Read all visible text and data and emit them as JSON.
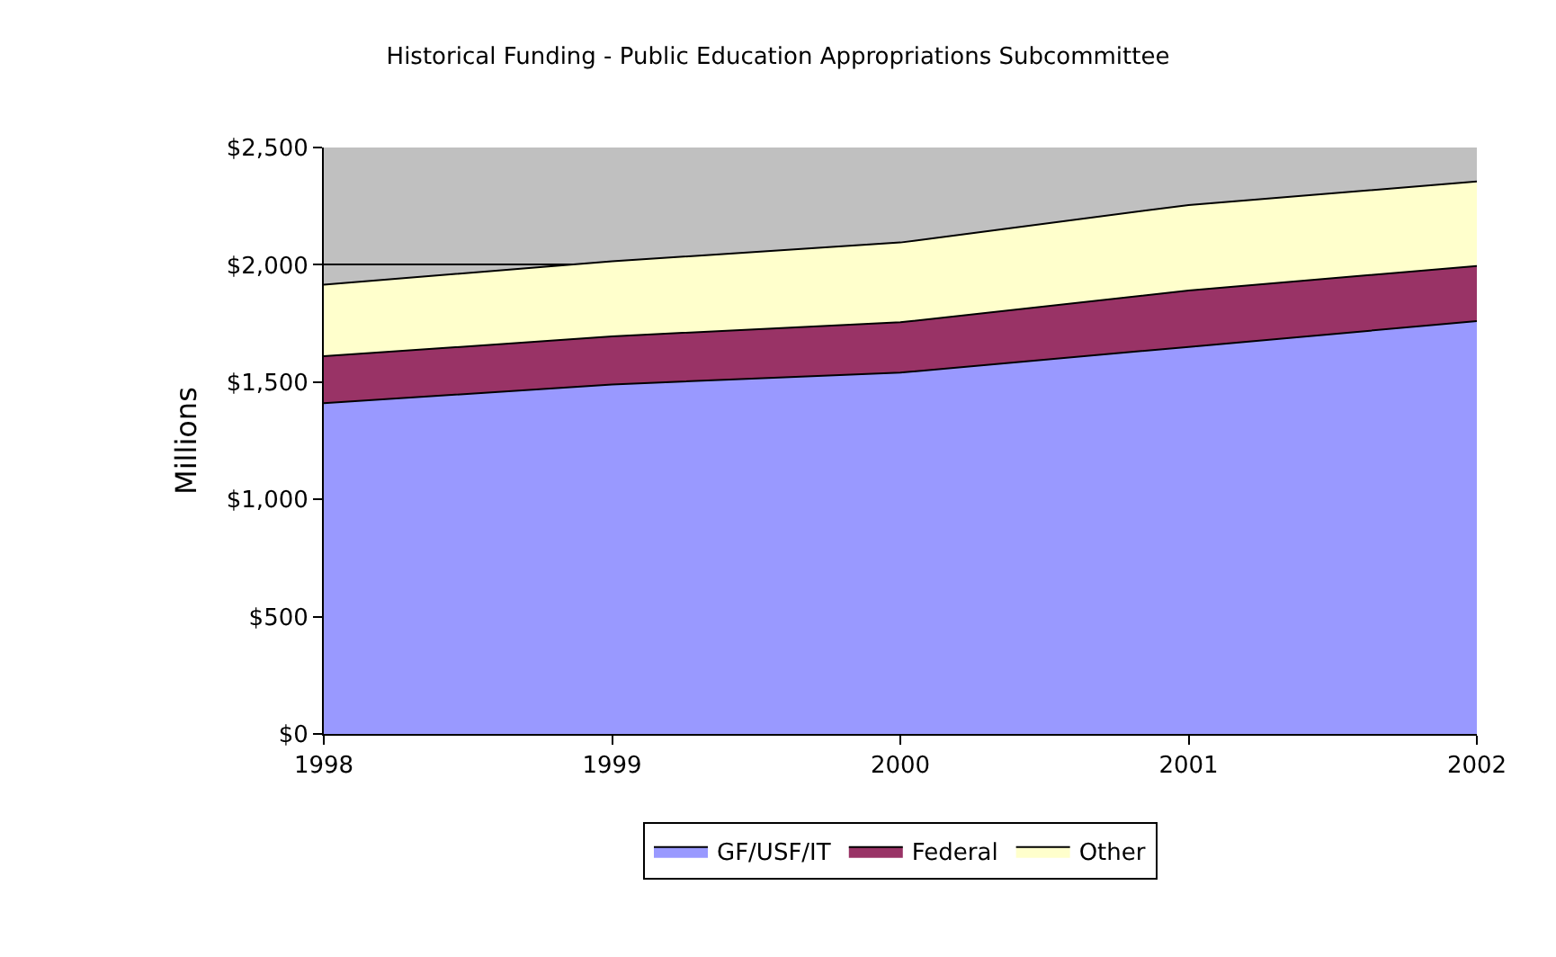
{
  "chart_data": {
    "type": "area",
    "stacked": true,
    "title": "Historical Funding - Public Education Appropriations Subcommittee",
    "ylabel": "Millions",
    "x": [
      1998,
      1999,
      2000,
      2001,
      2002
    ],
    "xlim": [
      1998,
      2002
    ],
    "xticks": [
      1998,
      1999,
      2000,
      2001,
      2002
    ],
    "ylim": [
      0,
      2500
    ],
    "yticks": [
      {
        "value": 0,
        "label": "$0"
      },
      {
        "value": 500,
        "label": "$500"
      },
      {
        "value": 1000,
        "label": "$1,000"
      },
      {
        "value": 1500,
        "label": "$1,500"
      },
      {
        "value": 2000,
        "label": "$2,000"
      },
      {
        "value": 2500,
        "label": "$2,500"
      }
    ],
    "grid": "y",
    "legend": "bottom",
    "series": [
      {
        "name": "GF/USF/IT",
        "color": "#9999ff",
        "values": [
          1410,
          1490,
          1540,
          1650,
          1760
        ]
      },
      {
        "name": "Federal",
        "color": "#993366",
        "values": [
          200,
          205,
          215,
          240,
          235
        ]
      },
      {
        "name": "Other",
        "color": "#ffffcc",
        "values": [
          305,
          320,
          340,
          365,
          360
        ]
      }
    ]
  }
}
